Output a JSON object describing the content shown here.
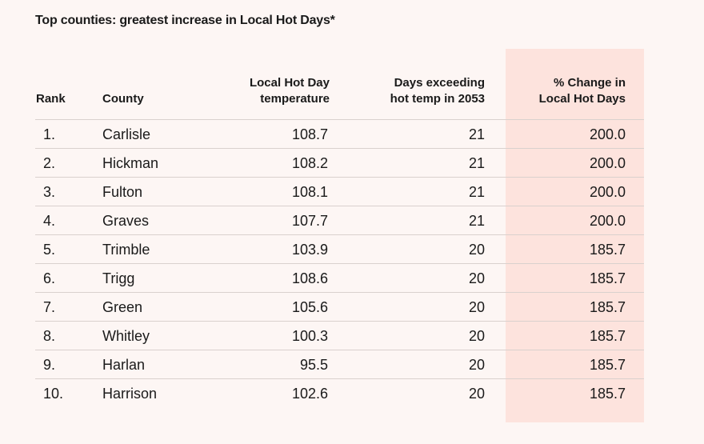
{
  "title": "Top counties: greatest increase in Local Hot Days*",
  "chart_data": {
    "type": "table",
    "highlight_color": "#fde3dd",
    "columns": [
      "Rank",
      "County",
      "Local Hot Day temperature",
      "Days exceeding hot temp in 2053",
      "% Change in Local Hot Days"
    ],
    "header_lines": {
      "rank": [
        "Rank"
      ],
      "county": [
        "County"
      ],
      "temp": [
        "Local Hot Day",
        "temperature"
      ],
      "days": [
        "Days exceeding",
        "hot temp in 2053"
      ],
      "pct": [
        "% Change in",
        "Local Hot Days"
      ]
    },
    "rows": [
      {
        "rank": "1.",
        "county": "Carlisle",
        "temp": "108.7",
        "days": "21",
        "pct": "200.0"
      },
      {
        "rank": "2.",
        "county": "Hickman",
        "temp": "108.2",
        "days": "21",
        "pct": "200.0"
      },
      {
        "rank": "3.",
        "county": "Fulton",
        "temp": "108.1",
        "days": "21",
        "pct": "200.0"
      },
      {
        "rank": "4.",
        "county": "Graves",
        "temp": "107.7",
        "days": "21",
        "pct": "200.0"
      },
      {
        "rank": "5.",
        "county": "Trimble",
        "temp": "103.9",
        "days": "20",
        "pct": "185.7"
      },
      {
        "rank": "6.",
        "county": "Trigg",
        "temp": "108.6",
        "days": "20",
        "pct": "185.7"
      },
      {
        "rank": "7.",
        "county": "Green",
        "temp": "105.6",
        "days": "20",
        "pct": "185.7"
      },
      {
        "rank": "8.",
        "county": "Whitley",
        "temp": "100.3",
        "days": "20",
        "pct": "185.7"
      },
      {
        "rank": "9.",
        "county": "Harlan",
        "temp": "95.5",
        "days": "20",
        "pct": "185.7"
      },
      {
        "rank": "10.",
        "county": "Harrison",
        "temp": "102.6",
        "days": "20",
        "pct": "185.7"
      }
    ]
  }
}
